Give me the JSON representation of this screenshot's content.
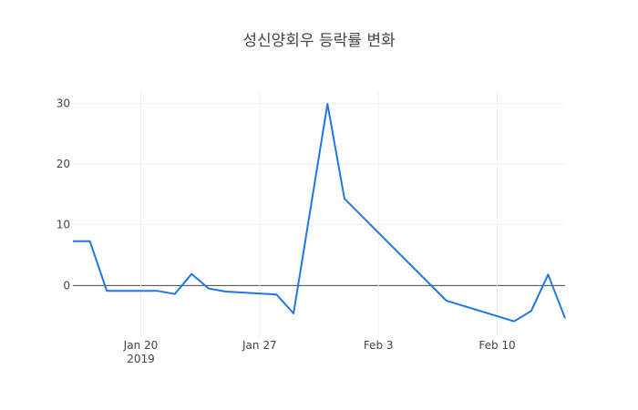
{
  "chart_data": {
    "type": "line",
    "title": "성신양회우 등락률 변화",
    "xlabel": "",
    "ylabel": "",
    "x_tick_labels": [
      {
        "date": "2019-01-20",
        "label": "Jan 20",
        "sublabel": "2019"
      },
      {
        "date": "2019-01-27",
        "label": "Jan 27",
        "sublabel": ""
      },
      {
        "date": "2019-02-03",
        "label": "Feb 3",
        "sublabel": ""
      },
      {
        "date": "2019-02-10",
        "label": "Feb 10",
        "sublabel": ""
      }
    ],
    "y_ticks": [
      0,
      10,
      20,
      30
    ],
    "xlim": [
      "2019-01-16",
      "2019-02-13"
    ],
    "ylim": [
      -8.5,
      32
    ],
    "grid": true,
    "series": [
      {
        "color": "#1f77e4",
        "points": [
          {
            "x": "2019-01-16",
            "y": 7.3
          },
          {
            "x": "2019-01-17",
            "y": 7.3
          },
          {
            "x": "2019-01-18",
            "y": -0.9
          },
          {
            "x": "2019-01-21",
            "y": -0.9
          },
          {
            "x": "2019-01-22",
            "y": -1.4
          },
          {
            "x": "2019-01-23",
            "y": 1.9
          },
          {
            "x": "2019-01-24",
            "y": -0.5
          },
          {
            "x": "2019-01-25",
            "y": -1.0
          },
          {
            "x": "2019-01-28",
            "y": -1.5
          },
          {
            "x": "2019-01-29",
            "y": -4.6
          },
          {
            "x": "2019-01-31",
            "y": 29.9
          },
          {
            "x": "2019-02-01",
            "y": 14.3
          },
          {
            "x": "2019-02-07",
            "y": -2.5
          },
          {
            "x": "2019-02-11",
            "y": -5.9
          },
          {
            "x": "2019-02-12",
            "y": -4.2
          },
          {
            "x": "2019-02-13",
            "y": 1.8
          },
          {
            "x": "2019-02-14",
            "y": -5.4
          }
        ]
      }
    ]
  }
}
